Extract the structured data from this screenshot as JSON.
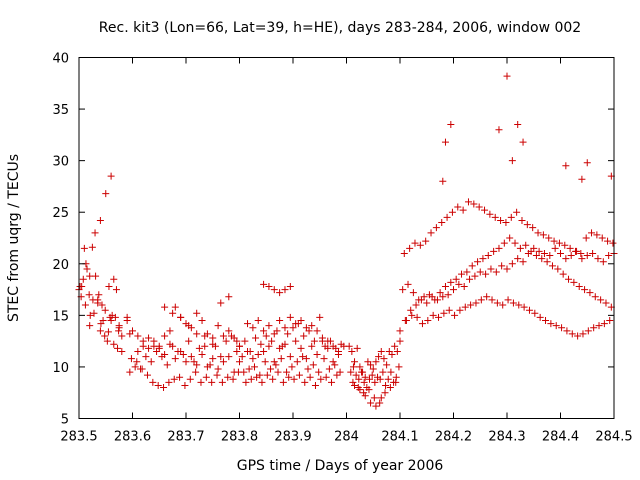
{
  "chart_data": {
    "type": "scatter",
    "title": "Rec. kit3 (Lon=66, Lat=39, h=HE), days 283-284, 2006, window 002",
    "xlabel": "GPS time / Days of year 2006",
    "ylabel": "STEC from uqrg / TECUs",
    "xlim": [
      283.5,
      284.5
    ],
    "ylim": [
      5,
      40
    ],
    "xticks": [
      "283.5",
      "283.6",
      "283.7",
      "283.8",
      "283.9",
      "284",
      "284.1",
      "284.2",
      "284.3",
      "284.4",
      "284.5"
    ],
    "xtick_values": [
      283.5,
      283.6,
      283.7,
      283.8,
      283.9,
      284.0,
      284.1,
      284.2,
      284.3,
      284.4,
      284.5
    ],
    "yticks": [
      "5",
      "10",
      "15",
      "20",
      "25",
      "30",
      "35",
      "40"
    ],
    "ytick_values": [
      5,
      10,
      15,
      20,
      25,
      30,
      35,
      40
    ],
    "grid": false,
    "marker": "+",
    "color": "#cc0000",
    "series": [
      {
        "x": [
          283.5,
          283.505,
          283.51,
          283.515,
          283.52,
          283.525,
          283.53,
          283.535,
          283.54,
          283.545,
          283.55,
          283.555,
          283.56,
          283.565,
          283.57,
          283.575,
          283.502,
          283.508,
          283.513,
          283.519,
          283.526,
          283.531,
          283.537,
          283.543,
          283.549,
          283.556,
          283.562,
          283.568,
          283.574,
          283.58,
          283.504,
          283.512,
          283.521,
          283.528,
          283.535,
          283.541,
          283.548,
          283.553,
          283.558,
          283.565,
          283.572,
          283.58,
          283.52,
          283.54,
          283.56,
          283.575,
          283.59,
          283.595,
          283.61,
          283.62,
          283.63,
          283.64,
          283.65,
          283.66,
          283.67,
          283.68,
          283.69,
          283.7,
          283.71,
          283.72,
          283.73,
          283.74,
          283.75,
          283.76,
          283.77,
          283.78,
          283.79,
          283.8,
          283.59,
          283.6,
          283.61,
          283.62,
          283.63,
          283.64,
          283.65,
          283.66,
          283.67,
          283.68,
          283.69,
          283.7,
          283.71,
          283.72,
          283.73,
          283.74,
          283.75,
          283.76,
          283.77,
          283.78,
          283.79,
          283.8,
          283.595,
          283.605,
          283.615,
          283.625,
          283.635,
          283.645,
          283.655,
          283.665,
          283.675,
          283.685,
          283.695,
          283.705,
          283.715,
          283.725,
          283.735,
          283.745,
          283.755,
          283.765,
          283.775,
          283.785,
          283.795,
          283.598,
          283.608,
          283.618,
          283.628,
          283.638,
          283.648,
          283.658,
          283.668,
          283.678,
          283.688,
          283.698,
          283.708,
          283.718,
          283.728,
          283.738,
          283.748,
          283.758,
          283.768,
          283.778,
          283.788,
          283.798,
          283.66,
          283.675,
          283.69,
          283.705,
          283.72,
          283.735,
          283.75,
          283.765,
          283.78,
          283.795,
          283.8,
          283.81,
          283.82,
          283.83,
          283.84,
          283.85,
          283.86,
          283.87,
          283.88,
          283.89,
          283.9,
          283.91,
          283.92,
          283.93,
          283.94,
          283.95,
          283.96,
          283.97,
          283.98,
          283.99,
          283.805,
          283.815,
          283.825,
          283.835,
          283.845,
          283.855,
          283.865,
          283.875,
          283.885,
          283.895,
          283.905,
          283.915,
          283.925,
          283.935,
          283.945,
          283.955,
          283.965,
          283.975,
          283.985,
          283.995,
          283.808,
          283.818,
          283.828,
          283.838,
          283.848,
          283.858,
          283.868,
          283.878,
          283.888,
          283.898,
          283.908,
          283.918,
          283.928,
          283.938,
          283.948,
          283.958,
          283.968,
          283.978,
          283.988,
          283.812,
          283.822,
          283.832,
          283.842,
          283.852,
          283.862,
          283.872,
          283.882,
          283.892,
          283.902,
          283.912,
          283.922,
          283.932,
          283.942,
          283.952,
          283.962,
          283.972,
          283.982,
          283.815,
          283.825,
          283.835,
          283.845,
          283.855,
          283.865,
          283.875,
          283.885,
          283.895,
          283.905,
          283.915,
          283.925,
          283.935,
          283.945,
          283.955,
          283.965,
          283.975,
          283.985,
          283.845,
          283.855,
          283.865,
          283.875,
          283.885,
          283.895,
          284.005,
          284.01,
          284.015,
          284.02,
          284.025,
          284.03,
          284.035,
          284.04,
          284.045,
          284.05,
          284.055,
          284.06,
          284.065,
          284.07,
          284.075,
          284.08,
          284.085,
          284.09,
          284.095,
          284.1,
          284.008,
          284.013,
          284.018,
          284.023,
          284.028,
          284.033,
          284.038,
          284.043,
          284.048,
          284.053,
          284.058,
          284.063,
          284.068,
          284.073,
          284.078,
          284.083,
          284.088,
          284.093,
          284.098,
          284.012,
          284.022,
          284.032,
          284.042,
          284.052,
          284.062,
          284.072,
          284.082,
          284.092,
          284.015,
          284.025,
          284.035,
          284.045,
          284.055,
          284.065,
          284.1,
          284.11,
          284.12,
          284.13,
          284.14,
          284.15,
          284.16,
          284.17,
          284.18,
          284.19,
          284.2,
          284.21,
          284.22,
          284.23,
          284.24,
          284.25,
          284.26,
          284.27,
          284.28,
          284.29,
          284.3,
          284.31,
          284.32,
          284.33,
          284.34,
          284.35,
          284.36,
          284.37,
          284.38,
          284.39,
          284.4,
          284.41,
          284.42,
          284.43,
          284.44,
          284.45,
          284.46,
          284.47,
          284.48,
          284.49,
          284.5,
          284.105,
          284.115,
          284.125,
          284.135,
          284.145,
          284.155,
          284.165,
          284.175,
          284.185,
          284.195,
          284.205,
          284.215,
          284.225,
          284.235,
          284.245,
          284.255,
          284.265,
          284.275,
          284.285,
          284.295,
          284.305,
          284.315,
          284.325,
          284.335,
          284.345,
          284.355,
          284.365,
          284.375,
          284.385,
          284.395,
          284.405,
          284.415,
          284.425,
          284.435,
          284.445,
          284.455,
          284.465,
          284.475,
          284.485,
          284.495,
          284.108,
          284.118,
          284.128,
          284.138,
          284.148,
          284.158,
          284.168,
          284.178,
          284.188,
          284.198,
          284.208,
          284.218,
          284.228,
          284.238,
          284.248,
          284.258,
          284.268,
          284.278,
          284.288,
          284.298,
          284.308,
          284.318,
          284.328,
          284.338,
          284.348,
          284.358,
          284.368,
          284.378,
          284.388,
          284.398,
          284.408,
          284.418,
          284.428,
          284.438,
          284.448,
          284.458,
          284.468,
          284.478,
          284.488,
          284.498,
          284.112,
          284.122,
          284.132,
          284.142,
          284.152,
          284.162,
          284.172,
          284.182,
          284.192,
          284.202,
          284.212,
          284.222,
          284.232,
          284.242,
          284.252,
          284.262,
          284.272,
          284.282,
          284.292,
          284.302,
          284.312,
          284.322,
          284.332,
          284.342,
          284.352,
          284.362,
          284.372,
          284.382,
          284.392,
          284.402,
          284.412,
          284.422,
          284.432,
          284.442,
          284.452,
          284.462,
          284.472,
          284.482,
          284.492,
          284.18,
          284.185,
          284.195,
          284.285,
          284.3,
          284.31,
          284.32,
          284.33,
          284.41,
          284.44,
          284.45,
          284.495
        ],
        "y": [
          17.5,
          17.8,
          21.5,
          19.5,
          18.8,
          21.6,
          23.0,
          16.2,
          24.2,
          14.5,
          26.8,
          13.4,
          28.5,
          18.5,
          17.5,
          14.0,
          17.8,
          18.5,
          20.0,
          17.0,
          16.5,
          18.8,
          17.0,
          16.0,
          15.5,
          17.8,
          15.0,
          14.8,
          13.5,
          13.0,
          16.8,
          16.0,
          15.0,
          15.2,
          16.5,
          14.2,
          13.0,
          12.5,
          14.8,
          12.2,
          11.8,
          11.5,
          14.0,
          13.5,
          14.5,
          13.8,
          14.8,
          13.2,
          13.0,
          12.5,
          11.8,
          12.0,
          11.8,
          11.2,
          12.2,
          10.8,
          11.5,
          10.5,
          11.0,
          10.2,
          11.2,
          10.0,
          10.8,
          9.8,
          10.5,
          11.0,
          9.5,
          10.5,
          14.5,
          13.5,
          11.5,
          12.0,
          12.8,
          12.5,
          12.0,
          13.0,
          13.5,
          15.8,
          14.8,
          14.2,
          13.8,
          15.2,
          14.5,
          13.2,
          12.8,
          14.0,
          13.0,
          13.5,
          12.8,
          12.0,
          9.5,
          10.0,
          9.8,
          11.0,
          10.5,
          11.5,
          11.0,
          10.2,
          12.0,
          11.5,
          11.2,
          12.5,
          10.5,
          11.8,
          12.0,
          10.2,
          12.0,
          11.0,
          12.5,
          13.0,
          11.5,
          10.8,
          10.5,
          9.8,
          9.2,
          8.5,
          8.2,
          8.0,
          8.5,
          8.8,
          9.0,
          8.2,
          8.8,
          9.5,
          8.5,
          9.0,
          8.5,
          9.2,
          8.5,
          9.0,
          8.8,
          9.5,
          15.8,
          15.2,
          14.8,
          14.0,
          13.2,
          13.0,
          12.2,
          16.2,
          16.8,
          12.5,
          12.0,
          12.5,
          11.5,
          12.8,
          12.2,
          13.0,
          12.5,
          13.5,
          12.0,
          13.2,
          13.8,
          14.2,
          13.0,
          13.5,
          12.5,
          14.8,
          12.0,
          12.5,
          11.8,
          12.2,
          11.0,
          11.5,
          10.8,
          11.2,
          11.5,
          12.0,
          10.5,
          11.8,
          12.2,
          11.0,
          12.5,
          11.8,
          10.8,
          12.0,
          11.2,
          12.5,
          11.8,
          10.5,
          11.2,
          12.0,
          9.5,
          9.8,
          10.0,
          9.2,
          10.5,
          9.8,
          10.2,
          10.8,
          9.5,
          10.0,
          10.5,
          11.0,
          9.8,
          10.2,
          9.5,
          10.8,
          9.8,
          10.2,
          9.5,
          8.5,
          8.8,
          9.0,
          8.5,
          9.2,
          8.8,
          9.5,
          8.5,
          9.0,
          8.8,
          9.2,
          8.5,
          9.0,
          8.2,
          8.8,
          9.0,
          8.5,
          9.2,
          14.2,
          13.8,
          14.5,
          13.5,
          14.0,
          13.2,
          14.5,
          13.8,
          14.8,
          14.2,
          14.5,
          13.8,
          14.0,
          13.5,
          12.8,
          12.5,
          12.0,
          11.5,
          18.0,
          17.8,
          17.5,
          17.2,
          17.5,
          17.8,
          12.0,
          11.5,
          10.5,
          11.8,
          10.0,
          9.5,
          9.0,
          10.5,
          10.2,
          9.8,
          10.5,
          11.0,
          11.5,
          10.8,
          10.2,
          11.5,
          11.2,
          12.0,
          11.5,
          12.5,
          9.5,
          10.0,
          9.2,
          8.8,
          9.5,
          8.5,
          8.0,
          8.8,
          9.2,
          8.5,
          9.0,
          8.8,
          9.5,
          8.2,
          8.8,
          9.5,
          8.5,
          9.0,
          10.0,
          8.5,
          8.0,
          7.5,
          7.8,
          7.0,
          6.5,
          7.5,
          8.0,
          8.5,
          8.2,
          7.8,
          7.2,
          6.5,
          6.2,
          7.0,
          13.5,
          14.5,
          15.5,
          16.0,
          16.5,
          16.2,
          16.8,
          16.5,
          16.8,
          17.0,
          17.5,
          18.0,
          17.8,
          18.5,
          18.8,
          19.2,
          19.0,
          19.5,
          19.2,
          19.8,
          19.5,
          20.0,
          20.5,
          20.2,
          21.0,
          21.5,
          21.2,
          21.0,
          20.8,
          21.5,
          21.0,
          20.5,
          20.8,
          21.2,
          20.5,
          20.8,
          21.0,
          20.5,
          20.2,
          20.8,
          21.0,
          17.5,
          18.0,
          17.2,
          16.5,
          16.8,
          17.0,
          16.5,
          17.2,
          17.8,
          18.2,
          18.5,
          19.0,
          19.2,
          19.8,
          20.2,
          20.5,
          20.8,
          21.2,
          21.5,
          22.0,
          22.5,
          22.0,
          21.5,
          21.8,
          21.2,
          20.8,
          20.5,
          20.2,
          19.8,
          19.5,
          19.0,
          18.5,
          18.2,
          17.8,
          17.5,
          17.2,
          16.8,
          16.5,
          16.2,
          15.8,
          21.0,
          21.5,
          22.0,
          21.8,
          22.2,
          23.0,
          23.5,
          24.0,
          24.5,
          25.0,
          25.5,
          25.2,
          26.0,
          25.8,
          25.5,
          25.2,
          24.8,
          24.5,
          24.2,
          24.0,
          24.5,
          25.0,
          24.2,
          23.8,
          23.5,
          23.0,
          22.8,
          22.5,
          22.2,
          22.0,
          21.8,
          21.5,
          21.2,
          21.0,
          22.5,
          23.0,
          22.8,
          22.5,
          22.2,
          22.0,
          14.5,
          15.0,
          14.8,
          14.2,
          14.5,
          15.0,
          14.8,
          15.2,
          15.5,
          15.0,
          15.5,
          15.8,
          16.0,
          16.2,
          16.5,
          16.8,
          16.5,
          16.2,
          16.0,
          16.5,
          16.2,
          16.0,
          15.8,
          15.5,
          15.2,
          14.8,
          14.5,
          14.2,
          14.0,
          13.8,
          13.5,
          13.2,
          13.0,
          13.2,
          13.5,
          13.8,
          14.0,
          14.2,
          14.5,
          28.0,
          31.8,
          33.5,
          33.0,
          38.2,
          30.0,
          33.5,
          31.8,
          29.5,
          28.2,
          29.8,
          28.5
        ]
      }
    ]
  }
}
